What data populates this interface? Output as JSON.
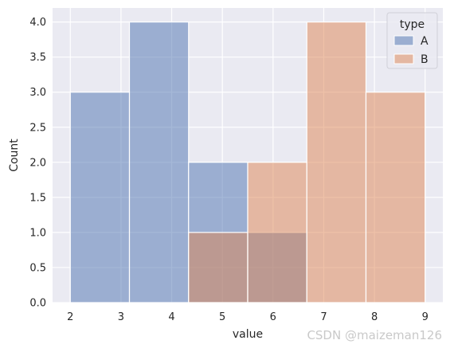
{
  "chart_data": {
    "type": "histogram",
    "xlabel": "value",
    "ylabel": "Count",
    "xlim": [
      1.65,
      9.35
    ],
    "ylim": [
      0,
      4.2
    ],
    "xticks": [
      "2",
      "3",
      "4",
      "5",
      "6",
      "7",
      "8",
      "9"
    ],
    "yticks": [
      "0.0",
      "0.5",
      "1.0",
      "1.5",
      "2.0",
      "2.5",
      "3.0",
      "3.5",
      "4.0"
    ],
    "bin_edges": [
      2.0,
      3.1667,
      4.3333,
      5.5,
      6.6667,
      7.8333,
      9.0
    ],
    "series": [
      {
        "name": "A",
        "color": "#4c72b0",
        "counts": [
          3,
          4,
          2,
          1,
          0,
          0
        ]
      },
      {
        "name": "B",
        "color": "#dd8452",
        "counts": [
          0,
          0,
          1,
          2,
          4,
          3
        ]
      }
    ],
    "legend": {
      "title": "type",
      "placement": "top-right"
    },
    "grid": true,
    "background": "#eaeaf2"
  },
  "watermark": "CSDN @maizeman126"
}
